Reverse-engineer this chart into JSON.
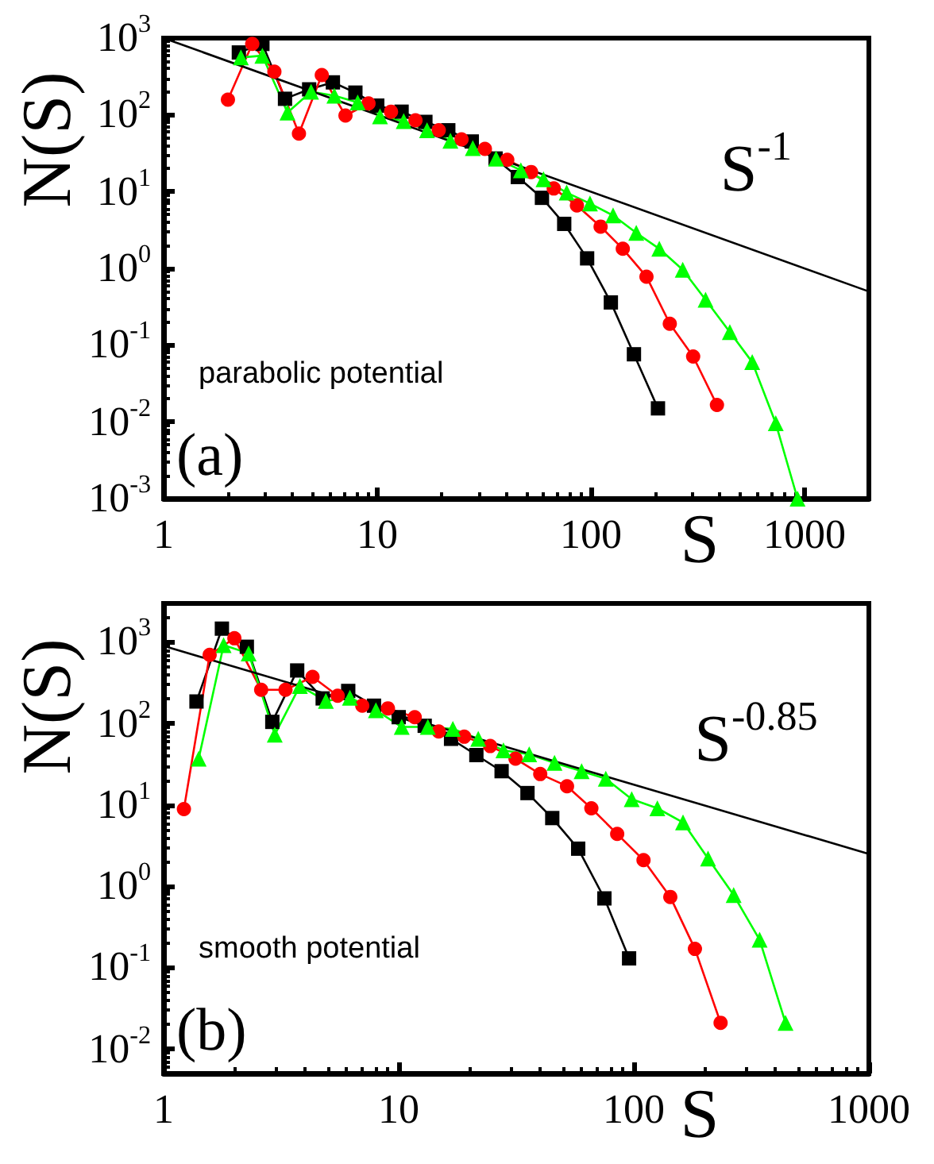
{
  "chart_data": [
    {
      "type": "line",
      "xlabel": "S",
      "ylabel": "N(S)",
      "log": "xy",
      "xlim": [
        1,
        2000
      ],
      "xticks": [
        1,
        10,
        100,
        1000
      ],
      "ylim": [
        0.001,
        1000
      ],
      "yticks": [
        {
          "value": 0.001,
          "label": "10$^{-3}$"
        },
        {
          "value": 0.01,
          "label": "10$^{-2}$"
        },
        {
          "value": 0.1,
          "label": "10$^{-1}$"
        },
        {
          "value": 1,
          "label": "10$^{0}$"
        },
        {
          "value": 10,
          "label": "10$^{1}$"
        },
        {
          "value": 100,
          "label": "10$^{2}$"
        },
        {
          "value": 1000,
          "label": "10$^{3}$"
        }
      ],
      "annotations": [
        "(a)",
        "parabolic potential"
      ],
      "series": [
        {
          "color": "#000000",
          "marker": "square",
          "x": [
            2.25,
            2.9,
            3.7,
            4.8,
            6.2,
            7.9,
            10,
            13,
            16.8,
            21.5,
            27.7,
            35.8,
            45.5,
            59,
            75,
            96,
            124,
            159,
            206
          ],
          "values": [
            650,
            840,
            162,
            215,
            265,
            195,
            132,
            110,
            81,
            63,
            45,
            27,
            15.5,
            8.3,
            3.8,
            1.35,
            0.36,
            0.076,
            0.015
          ]
        },
        {
          "color": "#ff0000",
          "marker": "circle",
          "x": [
            2,
            2.6,
            3.3,
            4.3,
            5.5,
            7.1,
            9.1,
            11.6,
            15.1,
            19.4,
            24.8,
            31.9,
            40.6,
            52.5,
            67,
            86,
            111,
            141,
            182,
            234,
            301,
            389
          ],
          "values": [
            158,
            840,
            365,
            57,
            330,
            98,
            141,
            110,
            85,
            63,
            48,
            36,
            26,
            18,
            11,
            6.6,
            3.5,
            1.8,
            0.78,
            0.19,
            0.071,
            0.0166
          ]
        },
        {
          "color": "#00ff00",
          "marker": "triangle",
          "x": [
            2.3,
            2.9,
            3.8,
            4.9,
            6.3,
            8.1,
            10.3,
            13.3,
            17.1,
            22,
            28,
            36,
            47,
            60,
            77,
            99,
            127,
            163,
            209,
            269,
            344,
            447,
            569,
            733,
            927
          ],
          "values": [
            560,
            590,
            107,
            200,
            178,
            145,
            96,
            83,
            63,
            46,
            37,
            27,
            19,
            14.5,
            9.7,
            7,
            4.9,
            2.9,
            1.8,
            0.96,
            0.39,
            0.148,
            0.06,
            0.0096,
            0.001
          ]
        },
        {
          "name": "S$^{-1}$",
          "color": "#000000",
          "marker": "none",
          "x": [
            1,
            2000
          ],
          "values": [
            1000,
            0.5
          ]
        }
      ]
    },
    {
      "type": "line",
      "xlabel": "S",
      "ylabel": "N(S)",
      "log": "xy",
      "xlim": [
        1,
        1000
      ],
      "xticks": [
        1,
        10,
        100,
        1000
      ],
      "ylim": [
        0.005,
        3000
      ],
      "yticks": [
        {
          "value": 0.01,
          "label": "10$^{-2}$"
        },
        {
          "value": 0.1,
          "label": "10$^{-1}$"
        },
        {
          "value": 1,
          "label": "10$^{0}$"
        },
        {
          "value": 10,
          "label": "10$^{1}$"
        },
        {
          "value": 100,
          "label": "10$^{2}$"
        },
        {
          "value": 1000,
          "label": "10$^{3}$"
        }
      ],
      "annotations": [
        "(b)",
        "smooth potential"
      ],
      "series": [
        {
          "color": "#000000",
          "marker": "square",
          "x": [
            1.38,
            1.77,
            2.26,
            2.9,
            3.7,
            4.75,
            6.1,
            7.85,
            10,
            12.9,
            16.7,
            21.4,
            27.4,
            35.3,
            45,
            58,
            75,
            95.5
          ],
          "values": [
            187,
            1470,
            880,
            105,
            450,
            204,
            252,
            166,
            120,
            94,
            65,
            41,
            26,
            14,
            6.9,
            2.9,
            0.71,
            0.13
          ]
        },
        {
          "color": "#ff0000",
          "marker": "circle",
          "x": [
            1.22,
            1.57,
            2,
            2.6,
            3.3,
            4.3,
            5.5,
            7,
            9,
            11.7,
            14.8,
            19,
            24.5,
            31.4,
            40,
            52,
            66,
            85,
            110,
            143,
            182,
            234
          ],
          "values": [
            8.9,
            700,
            1120,
            260,
            260,
            375,
            220,
            166,
            154,
            120,
            80,
            69,
            53,
            37,
            24,
            17,
            9.1,
            4.4,
            2.1,
            0.74,
            0.17,
            0.021
          ]
        },
        {
          "color": "#00ff00",
          "marker": "triangle",
          "x": [
            1.41,
            1.8,
            2.3,
            2.97,
            3.8,
            4.9,
            6.2,
            8,
            10.3,
            13.3,
            17,
            21.8,
            27.9,
            35.9,
            46,
            60,
            76,
            98,
            126,
            162,
            207,
            266,
            343,
            442
          ],
          "values": [
            37,
            920,
            730,
            73,
            290,
            190,
            208,
            146,
            91,
            91,
            86,
            65,
            47,
            42,
            33,
            26,
            21,
            11.8,
            9.1,
            6.1,
            2.2,
            0.78,
            0.22,
            0.021
          ]
        },
        {
          "name": "S$^{-0.85}$",
          "color": "#000000",
          "marker": "none",
          "x": [
            1,
            1000
          ],
          "values": [
            900,
            2.5
          ]
        }
      ]
    }
  ]
}
